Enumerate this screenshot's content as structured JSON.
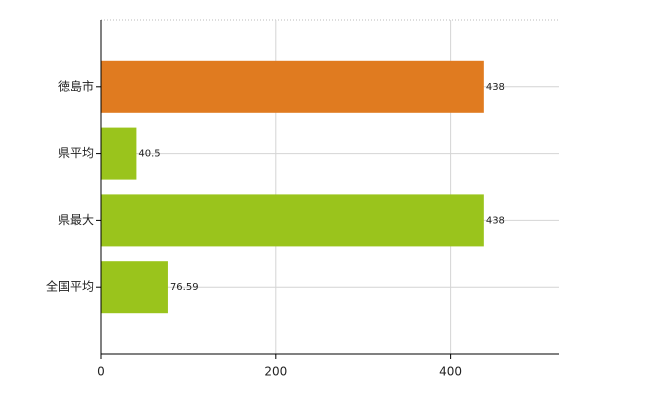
{
  "chart_data": {
    "type": "hbar",
    "categories": [
      "徳島市",
      "県平均",
      "県最大",
      "全国平均"
    ],
    "values": [
      438,
      40.5,
      438,
      76.59
    ],
    "colors": [
      "#e07b20",
      "#9ac41c",
      "#9ac41c",
      "#9ac41c"
    ],
    "xlim": [
      0,
      524
    ],
    "xticks": [
      0,
      200,
      400
    ],
    "grid": true
  }
}
